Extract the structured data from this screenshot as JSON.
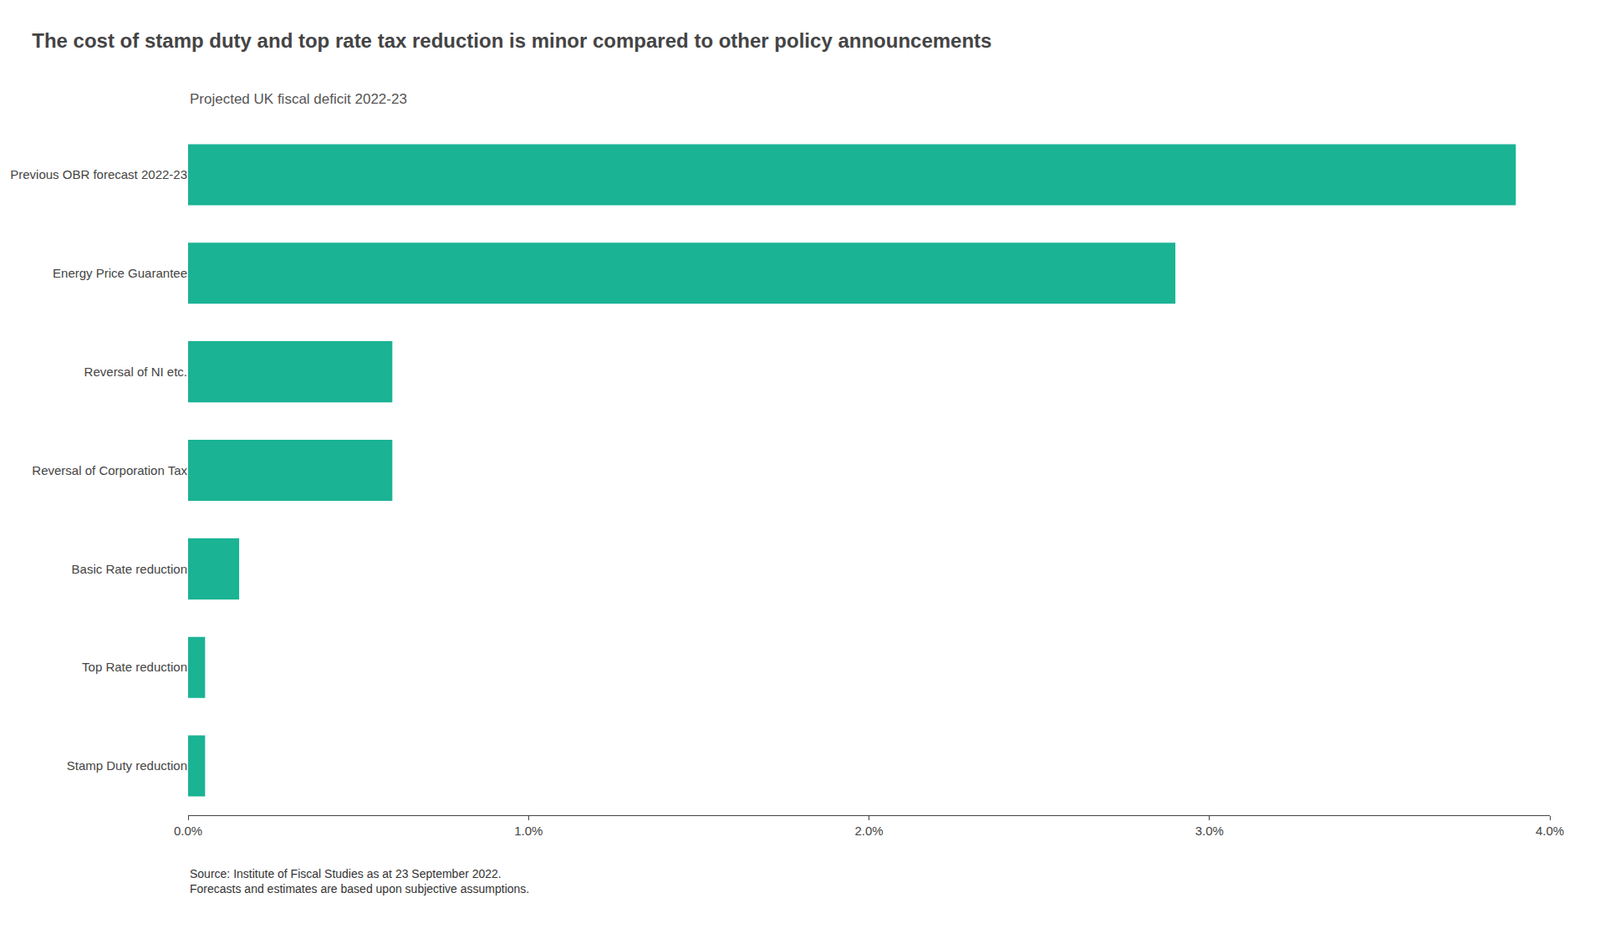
{
  "chart_data": {
    "type": "bar",
    "orientation": "horizontal",
    "title": "The cost of stamp duty and top rate tax reduction is minor compared to other policy announcements",
    "subtitle": "Projected UK fiscal deficit 2022-23",
    "categories": [
      "Previous OBR forecast 2022-23",
      "Energy Price Guarantee",
      "Reversal of NI etc.",
      "Reversal of Corporation Tax",
      "Basic Rate reduction",
      "Top Rate reduction",
      "Stamp Duty reduction"
    ],
    "values": [
      3.9,
      2.9,
      0.6,
      0.6,
      0.15,
      0.05,
      0.05
    ],
    "color": "#1ab394",
    "xlim": [
      0,
      4.0
    ],
    "xticks": [
      {
        "value": 0.0,
        "label": "0.0%"
      },
      {
        "value": 1.0,
        "label": "1.0%"
      },
      {
        "value": 2.0,
        "label": "2.0%"
      },
      {
        "value": 3.0,
        "label": "3.0%"
      },
      {
        "value": 4.0,
        "label": "4.0%"
      }
    ],
    "grid": false,
    "annotations": [
      "Source: Institute of Fiscal Studies as at 23 September 2022.\nForecasts and estimates are based upon subjective assumptions."
    ]
  }
}
